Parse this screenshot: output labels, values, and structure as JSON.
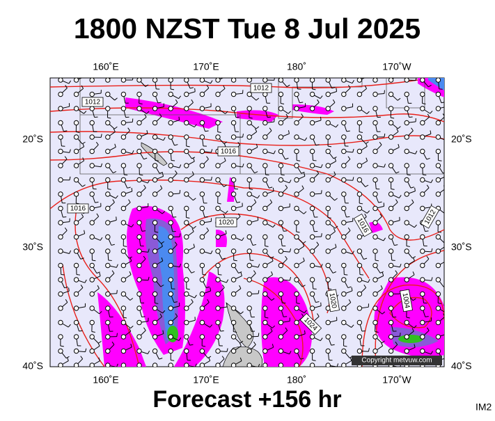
{
  "title": "1800 NZST Tue 8 Jul 2025",
  "footer": "Forecast +156 hr",
  "product": "IM2",
  "copyright": "Copyright metvuw.com",
  "longitude_labels": [
    "160˚E",
    "170˚E",
    "180˚",
    "170˚W"
  ],
  "latitude_labels": [
    "20˚S",
    "30˚S",
    "40˚S"
  ],
  "isobar_labels": [
    "1012",
    "1012",
    "1016",
    "1016",
    "1016",
    "1020",
    "1012",
    "1020",
    "1024",
    "1004"
  ]
}
